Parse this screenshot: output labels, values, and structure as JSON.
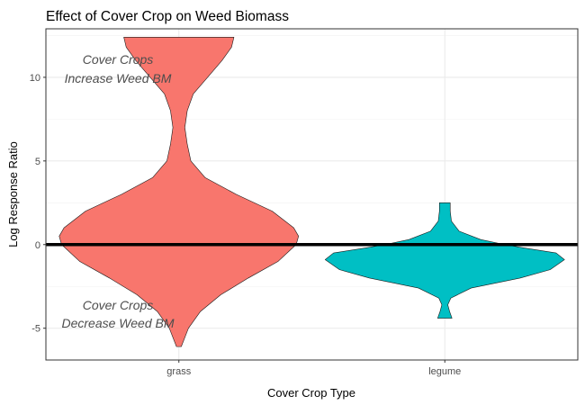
{
  "chart_data": {
    "type": "violin",
    "title": "Effect of Cover Crop on Weed Biomass",
    "xlabel": "Cover Crop Type",
    "ylabel": "Log Response Ratio",
    "categories": [
      "grass",
      "legume"
    ],
    "ylim": [
      -6.9,
      12.9
    ],
    "yticks": [
      -5,
      0,
      5,
      10
    ],
    "grid": true,
    "reference_line_y": 0,
    "annotations": [
      {
        "lines": [
          "Cover Crops",
          "Increase Weed BM"
        ]
      },
      {
        "lines": [
          "Cover Crops",
          "Decrease Weed BM"
        ]
      }
    ],
    "series": [
      {
        "category": "grass",
        "color": "#f8766d",
        "range": [
          -6.1,
          12.4
        ],
        "density": [
          [
            -6.1,
            0.02
          ],
          [
            -5.0,
            0.08
          ],
          [
            -4.0,
            0.18
          ],
          [
            -3.0,
            0.35
          ],
          [
            -2.0,
            0.58
          ],
          [
            -1.0,
            0.83
          ],
          [
            0.0,
            0.98
          ],
          [
            0.5,
            1.0
          ],
          [
            1.0,
            0.96
          ],
          [
            2.0,
            0.78
          ],
          [
            3.0,
            0.48
          ],
          [
            4.0,
            0.22
          ],
          [
            5.0,
            0.1
          ],
          [
            6.0,
            0.07
          ],
          [
            7.0,
            0.05
          ],
          [
            8.0,
            0.07
          ],
          [
            9.0,
            0.12
          ],
          [
            10.0,
            0.24
          ],
          [
            11.0,
            0.36
          ],
          [
            11.8,
            0.44
          ],
          [
            12.4,
            0.46
          ]
        ]
      },
      {
        "category": "legume",
        "color": "#00bfc4",
        "range": [
          -4.4,
          2.5
        ],
        "density": [
          [
            -4.4,
            0.06
          ],
          [
            -4.0,
            0.04
          ],
          [
            -3.6,
            0.025
          ],
          [
            -3.2,
            0.05
          ],
          [
            -2.6,
            0.22
          ],
          [
            -2.0,
            0.63
          ],
          [
            -1.5,
            0.88
          ],
          [
            -0.9,
            1.0
          ],
          [
            -0.5,
            0.93
          ],
          [
            -0.2,
            0.66
          ],
          [
            0.0,
            0.5
          ],
          [
            0.3,
            0.3
          ],
          [
            0.8,
            0.12
          ],
          [
            1.4,
            0.055
          ],
          [
            2.0,
            0.045
          ],
          [
            2.5,
            0.045
          ]
        ]
      }
    ]
  }
}
